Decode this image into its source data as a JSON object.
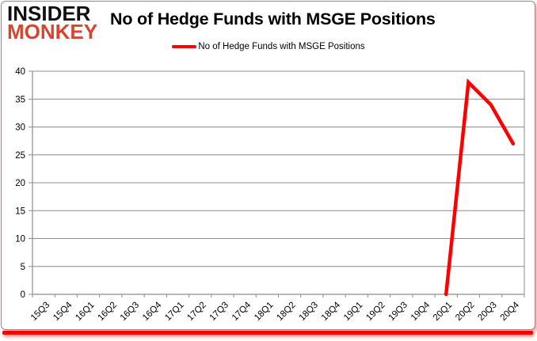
{
  "logo": {
    "line1": "INSIDER",
    "line2": "MONKEY"
  },
  "title": "No of Hedge Funds with MSGE Positions",
  "legend": {
    "label": "No of Hedge Funds with MSGE Positions"
  },
  "chart_data": {
    "type": "line",
    "title": "No of Hedge Funds with MSGE Positions",
    "categories": [
      "15Q3",
      "15Q4",
      "16Q1",
      "16Q2",
      "16Q3",
      "16Q4",
      "17Q1",
      "17Q2",
      "17Q3",
      "17Q4",
      "18Q1",
      "18Q2",
      "18Q3",
      "18Q4",
      "19Q1",
      "19Q2",
      "19Q3",
      "19Q4",
      "20Q1",
      "20Q2",
      "20Q3",
      "20Q4"
    ],
    "series": [
      {
        "name": "No of Hedge Funds with MSGE Positions",
        "color": "#fd0000",
        "values": [
          null,
          null,
          null,
          null,
          null,
          null,
          null,
          null,
          null,
          null,
          null,
          null,
          null,
          null,
          null,
          null,
          null,
          null,
          0,
          38,
          34,
          27
        ]
      }
    ],
    "ylim": [
      0,
      40
    ],
    "ytick_step": 5,
    "grid": true,
    "legend_position": "top-center",
    "colors": {
      "grid": "#8c8c8c",
      "axis": "#8c8c8c",
      "tick_text": "#000000"
    }
  }
}
